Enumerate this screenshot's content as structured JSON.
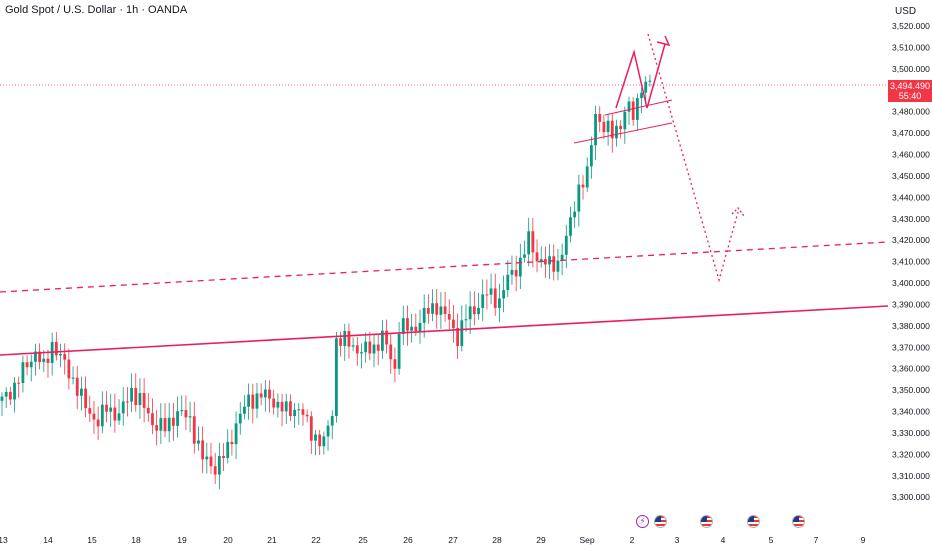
{
  "header": {
    "title": "Gold Spot / U.S. Dollar · 1h · OANDA",
    "currency": "USD"
  },
  "price_label": {
    "price": "3,494.490",
    "countdown": "55:40",
    "color": "#f23645"
  },
  "colors": {
    "up": "#089981",
    "down": "#f23645",
    "drawing": "#e91e63",
    "grid_text": "#131722"
  },
  "events": [
    {
      "icon": "lightning-icon"
    },
    {
      "icon": "us-flag-icon"
    },
    {
      "icon": "us-flag-icon"
    },
    {
      "icon": "us-flag-icon"
    },
    {
      "icon": "us-flag-icon"
    }
  ],
  "chart_data": {
    "type": "candlestick",
    "ylim": [
      3295,
      3525
    ],
    "y_ticks": [
      "3,520.000",
      "3,510.000",
      "3,500.000",
      "3,490.000",
      "3,480.000",
      "3,470.000",
      "3,460.000",
      "3,450.000",
      "3,440.000",
      "3,430.000",
      "3,420.000",
      "3,410.000",
      "3,400.000",
      "3,390.000",
      "3,380.000",
      "3,370.000",
      "3,360.000",
      "3,350.000",
      "3,340.000",
      "3,330.000",
      "3,320.000",
      "3,310.000",
      "3,300.000"
    ],
    "x_ticks": [
      "13",
      "14",
      "15",
      "18",
      "19",
      "20",
      "21",
      "22",
      "25",
      "26",
      "27",
      "28",
      "29",
      "Sep",
      "2",
      "3",
      "4",
      "5",
      "7",
      "9"
    ],
    "close_path": [
      [
        0,
        3345
      ],
      [
        3,
        3352
      ],
      [
        6,
        3362
      ],
      [
        8,
        3368
      ],
      [
        10,
        3360
      ],
      [
        12,
        3372
      ],
      [
        14,
        3365
      ],
      [
        17,
        3355
      ],
      [
        20,
        3342
      ],
      [
        23,
        3335
      ],
      [
        25,
        3342
      ],
      [
        28,
        3338
      ],
      [
        31,
        3350
      ],
      [
        33,
        3345
      ],
      [
        36,
        3335
      ],
      [
        39,
        3332
      ],
      [
        42,
        3340
      ],
      [
        45,
        3336
      ],
      [
        48,
        3318
      ],
      [
        51,
        3314
      ],
      [
        54,
        3322
      ],
      [
        56,
        3335
      ],
      [
        59,
        3345
      ],
      [
        62,
        3348
      ],
      [
        65,
        3345
      ],
      [
        68,
        3340
      ],
      [
        71,
        3342
      ],
      [
        74,
        3330
      ],
      [
        77,
        3325
      ],
      [
        79,
        3340
      ],
      [
        80,
        3374
      ],
      [
        83,
        3372
      ],
      [
        86,
        3368
      ],
      [
        89,
        3370
      ],
      [
        91,
        3375
      ],
      [
        94,
        3360
      ],
      [
        95,
        3380
      ],
      [
        98,
        3378
      ],
      [
        101,
        3385
      ],
      [
        104,
        3390
      ],
      [
        107,
        3382
      ],
      [
        109,
        3375
      ],
      [
        111,
        3384
      ],
      [
        113,
        3388
      ],
      [
        116,
        3395
      ],
      [
        119,
        3392
      ],
      [
        121,
        3402
      ],
      [
        124,
        3410
      ],
      [
        126,
        3420
      ],
      [
        128,
        3412
      ],
      [
        131,
        3408
      ],
      [
        133,
        3410
      ],
      [
        135,
        3420
      ],
      [
        138,
        3445
      ],
      [
        140,
        3450
      ],
      [
        142,
        3480
      ],
      [
        144,
        3472
      ],
      [
        146,
        3470
      ],
      [
        148,
        3475
      ],
      [
        150,
        3482
      ],
      [
        151,
        3478
      ],
      [
        153,
        3493
      ],
      [
        154,
        3490
      ],
      [
        155,
        3494.49
      ]
    ],
    "last_index": 155
  }
}
